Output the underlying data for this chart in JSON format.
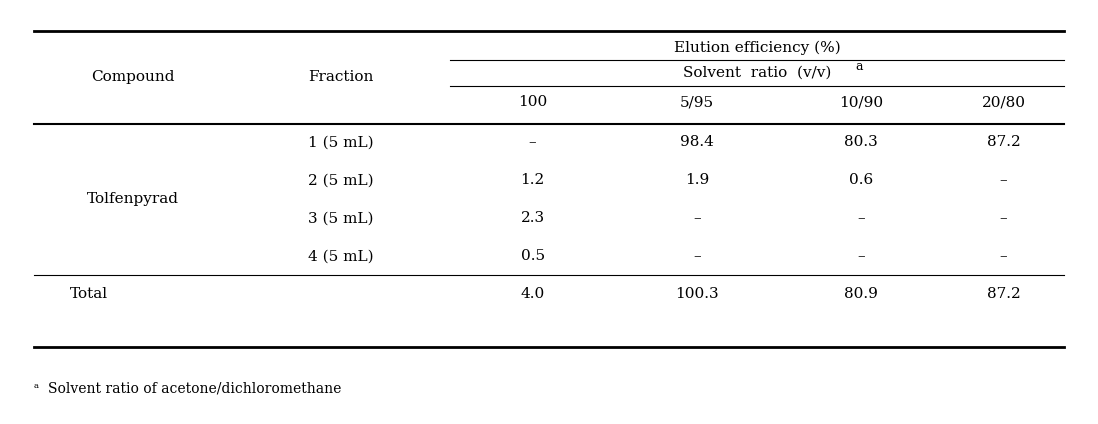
{
  "title_row1": "Elution efficiency (%)",
  "title_row2": "Solvent ratio (v/v)ᵃ",
  "col_headers": [
    "100",
    "5/95",
    "10/90",
    "20/80"
  ],
  "compound": "Tolfenpyrad",
  "fractions": [
    "1 (5 mL)",
    "2 (5 mL)",
    "3 (5 mL)",
    "4 (5 mL)"
  ],
  "data": [
    [
      "–",
      "98.4",
      "80.3",
      "87.2"
    ],
    [
      "1.2",
      "1.9",
      "0.6",
      "–"
    ],
    [
      "2.3",
      "–",
      "–",
      "–"
    ],
    [
      "0.5",
      "–",
      "–",
      "–"
    ]
  ],
  "total_row": [
    "4.0",
    "100.3",
    "80.9",
    "87.2"
  ],
  "footnote": "ᵃ  Solvent ratio of acetone/dichloromethane",
  "bg_color": "#ffffff",
  "text_color": "#000000",
  "font_size": 11,
  "header_font_size": 11
}
